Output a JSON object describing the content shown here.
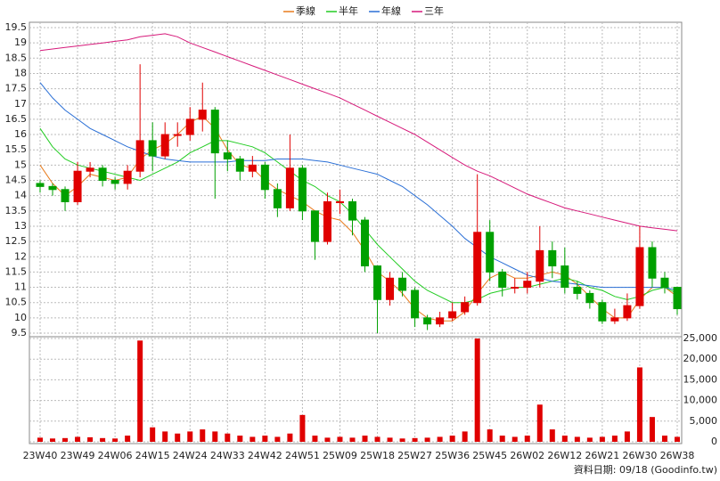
{
  "chart_data": {
    "type": "candlestick",
    "categories": [
      "23W40",
      null,
      null,
      "23W49",
      null,
      null,
      "24W06",
      null,
      null,
      "24W15",
      null,
      null,
      "24W24",
      null,
      null,
      "24W33",
      null,
      null,
      "24W42",
      null,
      null,
      "24W51",
      null,
      null,
      "25W09",
      null,
      null,
      "25W18",
      null,
      null,
      "25W27",
      null,
      null,
      "25W36",
      null,
      null,
      "25W45",
      null,
      null,
      "26W02",
      null,
      null,
      "26W12",
      null,
      null,
      "26W21",
      null,
      null,
      "26W30",
      null,
      null,
      "26W38"
    ],
    "open": [
      14.4,
      14.3,
      14.2,
      13.8,
      14.8,
      14.9,
      14.5,
      14.4,
      14.8,
      15.8,
      15.3,
      16.0,
      16.0,
      16.5,
      16.8,
      15.4,
      15.2,
      14.8,
      15.0,
      14.2,
      13.6,
      14.9,
      13.5,
      12.5,
      13.8,
      13.8,
      13.2,
      11.7,
      10.6,
      11.3,
      10.9,
      10.0,
      9.8,
      10.0,
      10.2,
      10.5,
      12.8,
      11.5,
      11.0,
      11.0,
      11.2,
      12.2,
      11.7,
      11.0,
      10.8,
      10.5,
      9.9,
      10.0,
      10.4,
      12.3,
      11.3,
      11.0
    ],
    "high": [
      14.5,
      14.4,
      14.3,
      15.1,
      15.1,
      15.0,
      14.6,
      15.0,
      18.3,
      16.4,
      16.4,
      16.4,
      16.9,
      17.7,
      16.9,
      15.8,
      15.3,
      15.3,
      15.1,
      14.4,
      16.0,
      15.0,
      13.5,
      14.1,
      14.2,
      13.9,
      13.3,
      11.7,
      11.5,
      11.5,
      11.0,
      10.1,
      10.2,
      10.5,
      10.7,
      14.7,
      13.2,
      11.6,
      11.3,
      11.5,
      13.0,
      12.5,
      12.3,
      11.2,
      10.9,
      10.6,
      10.3,
      10.8,
      13.0,
      12.5,
      11.5,
      11.0
    ],
    "low": [
      14.1,
      14.0,
      13.5,
      13.7,
      14.6,
      14.3,
      14.2,
      14.2,
      14.6,
      14.8,
      15.2,
      15.6,
      15.8,
      16.1,
      13.9,
      14.8,
      14.5,
      14.6,
      13.9,
      13.3,
      13.5,
      13.2,
      11.9,
      12.4,
      13.4,
      12.7,
      11.5,
      9.5,
      10.4,
      10.7,
      9.7,
      9.6,
      9.7,
      9.9,
      10.1,
      10.4,
      11.2,
      10.7,
      10.8,
      10.8,
      11.0,
      11.3,
      10.8,
      10.6,
      10.3,
      9.8,
      9.8,
      9.9,
      10.3,
      11.0,
      10.8,
      10.1
    ],
    "close": [
      14.3,
      14.2,
      13.8,
      14.8,
      14.9,
      14.5,
      14.4,
      14.8,
      15.8,
      15.3,
      16.0,
      16.0,
      16.5,
      16.8,
      15.4,
      15.2,
      14.8,
      15.0,
      14.2,
      13.6,
      14.9,
      13.5,
      12.5,
      13.8,
      13.8,
      13.2,
      11.7,
      10.6,
      11.3,
      10.9,
      10.0,
      9.8,
      10.0,
      10.2,
      10.5,
      12.8,
      11.5,
      11.0,
      11.0,
      11.2,
      12.2,
      11.7,
      11.0,
      10.8,
      10.5,
      9.9,
      10.0,
      10.4,
      12.3,
      11.3,
      11.0,
      10.3
    ],
    "up_color": "#e00000",
    "down_color": "#00a000",
    "series": [
      {
        "name": "季線",
        "color": "#e87b1c",
        "values": [
          15.0,
          14.4,
          14.0,
          14.3,
          14.7,
          14.6,
          14.5,
          14.6,
          15.2,
          15.5,
          15.7,
          16.0,
          16.4,
          16.6,
          16.2,
          15.5,
          15.0,
          14.9,
          14.5,
          14.2,
          14.0,
          13.8,
          13.5,
          13.3,
          13.2,
          12.8,
          12.2,
          11.5,
          11.2,
          10.8,
          10.3,
          10.0,
          9.9,
          9.9,
          10.2,
          10.8,
          11.3,
          11.5,
          11.3,
          11.3,
          11.4,
          11.5,
          11.4,
          11.1,
          10.7,
          10.3,
          10.0,
          10.0,
          10.6,
          11.0,
          11.0,
          10.7
        ]
      },
      {
        "name": "半年",
        "color": "#22cc22",
        "values": [
          16.2,
          15.6,
          15.2,
          15.0,
          14.9,
          14.8,
          14.7,
          14.6,
          14.5,
          14.7,
          14.9,
          15.1,
          15.4,
          15.6,
          15.8,
          15.8,
          15.7,
          15.6,
          15.4,
          15.1,
          14.8,
          14.5,
          14.3,
          14.0,
          13.8,
          13.4,
          12.9,
          12.4,
          12.0,
          11.6,
          11.2,
          10.9,
          10.7,
          10.5,
          10.5,
          10.6,
          10.8,
          10.9,
          11.0,
          11.0,
          11.1,
          11.2,
          11.3,
          11.2,
          11.0,
          10.9,
          10.7,
          10.6,
          10.7,
          10.9,
          11.0,
          10.8
        ]
      },
      {
        "name": "年線",
        "color": "#2a6fd6",
        "values": [
          17.7,
          17.2,
          16.8,
          16.5,
          16.2,
          16.0,
          15.8,
          15.6,
          15.45,
          15.3,
          15.2,
          15.15,
          15.1,
          15.1,
          15.1,
          15.1,
          15.15,
          15.15,
          15.15,
          15.2,
          15.2,
          15.2,
          15.15,
          15.1,
          15.0,
          14.9,
          14.8,
          14.7,
          14.5,
          14.3,
          14.0,
          13.7,
          13.35,
          13.0,
          12.6,
          12.3,
          12.0,
          11.8,
          11.6,
          11.4,
          11.3,
          11.2,
          11.15,
          11.1,
          11.05,
          11.0,
          11.0,
          11.0,
          11.0,
          11.0,
          11.0,
          10.9
        ]
      },
      {
        "name": "三年",
        "color": "#d6197a",
        "values": [
          18.75,
          18.8,
          18.85,
          18.9,
          18.95,
          19.0,
          19.05,
          19.1,
          19.2,
          19.25,
          19.3,
          19.2,
          19.0,
          18.85,
          18.7,
          18.55,
          18.4,
          18.25,
          18.1,
          17.95,
          17.8,
          17.65,
          17.5,
          17.35,
          17.2,
          17.0,
          16.8,
          16.6,
          16.4,
          16.2,
          16.0,
          15.75,
          15.5,
          15.25,
          15.0,
          14.8,
          14.65,
          14.45,
          14.25,
          14.05,
          13.9,
          13.75,
          13.6,
          13.5,
          13.4,
          13.3,
          13.2,
          13.1,
          13.0,
          12.95,
          12.9,
          12.85
        ]
      }
    ],
    "ylim": [
      9.5,
      19.5
    ],
    "yticks": [
      9.5,
      10,
      10.5,
      11,
      11.5,
      12,
      12.5,
      13,
      13.5,
      14,
      14.5,
      15,
      15.5,
      16,
      16.5,
      17,
      17.5,
      18,
      18.5,
      19,
      19.5
    ],
    "volume": {
      "color": "#e00000",
      "values": [
        1000,
        800,
        900,
        1200,
        1100,
        900,
        800,
        1500,
        24500,
        3500,
        2500,
        2000,
        2500,
        3000,
        2500,
        2000,
        1500,
        1200,
        1500,
        1200,
        2000,
        6500,
        1500,
        1000,
        1200,
        1000,
        1500,
        1200,
        1000,
        800,
        900,
        1000,
        1200,
        1500,
        2500,
        25000,
        3000,
        1500,
        1200,
        1500,
        9000,
        3000,
        1500,
        1200,
        1000,
        1200,
        1500,
        2500,
        18000,
        6000,
        1500,
        1200
      ],
      "ylim": [
        0,
        25000
      ],
      "yticks": [
        0,
        {
          "value": 5000,
          "label": "5,000"
        },
        {
          "value": 10000,
          "label": "10,000"
        },
        {
          "value": 15000,
          "label": "15,000"
        },
        {
          "value": 20000,
          "label": "20,000"
        },
        {
          "value": 25000,
          "label": "25,000"
        }
      ]
    },
    "grid": true,
    "footer": "資料日期: 09/18 (Goodinfo.tw)"
  }
}
